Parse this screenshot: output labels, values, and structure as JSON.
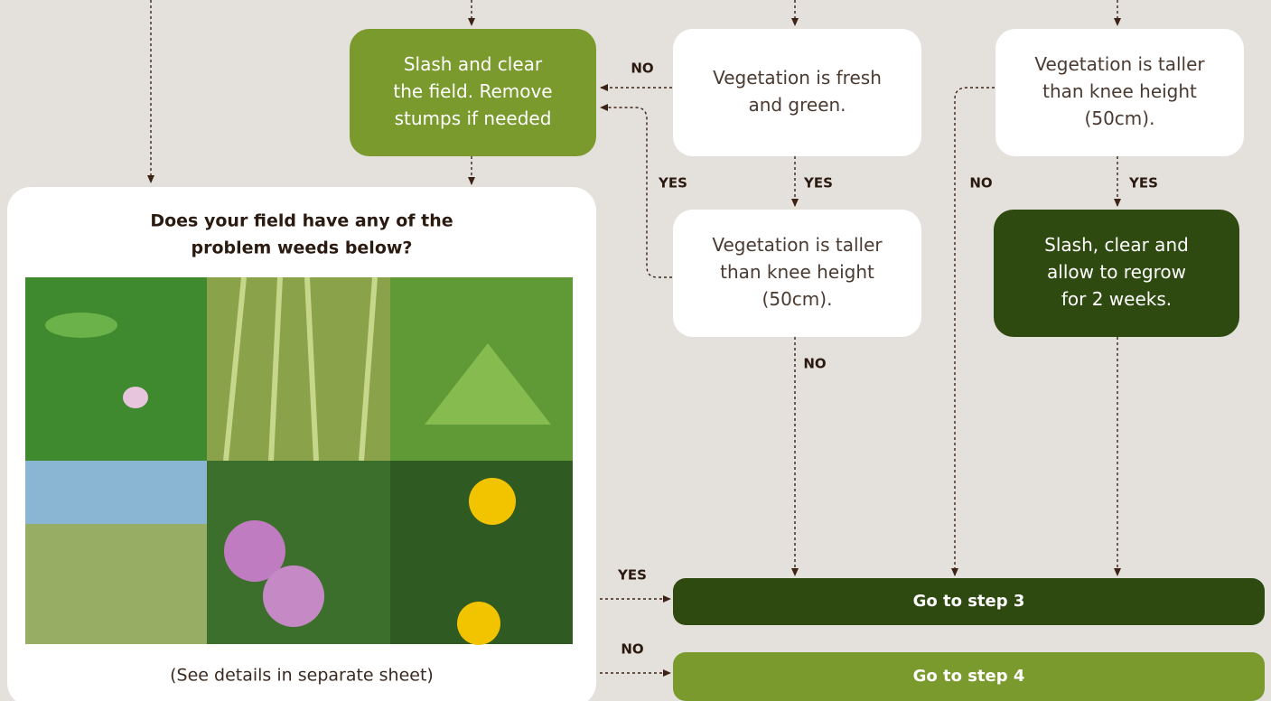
{
  "nodes": [
    {
      "lines": [
        "Slash and clear",
        "the field. Remove",
        "stumps if needed"
      ]
    },
    {
      "lines": [
        "Vegetation is fresh",
        "and green."
      ]
    },
    {
      "lines": [
        "Vegetation is taller",
        "than knee height",
        "(50cm)."
      ]
    },
    {
      "lines": [
        "Vegetation is taller",
        "than knee height",
        "(50cm)."
      ]
    },
    {
      "lines": [
        "Slash, clear and",
        "allow to regrow",
        "for 2 weeks."
      ]
    },
    {
      "lines": [
        "Go to step 3"
      ]
    },
    {
      "lines": [
        "Go to step 4"
      ]
    }
  ],
  "panel": {
    "title": [
      "Does your field have any of the",
      "problem weeds below?"
    ],
    "caption": "(See details in separate sheet)"
  },
  "edge_labels": [
    "NO",
    "YES",
    "YES",
    "NO",
    "YES",
    "NO",
    "YES",
    "NO"
  ]
}
